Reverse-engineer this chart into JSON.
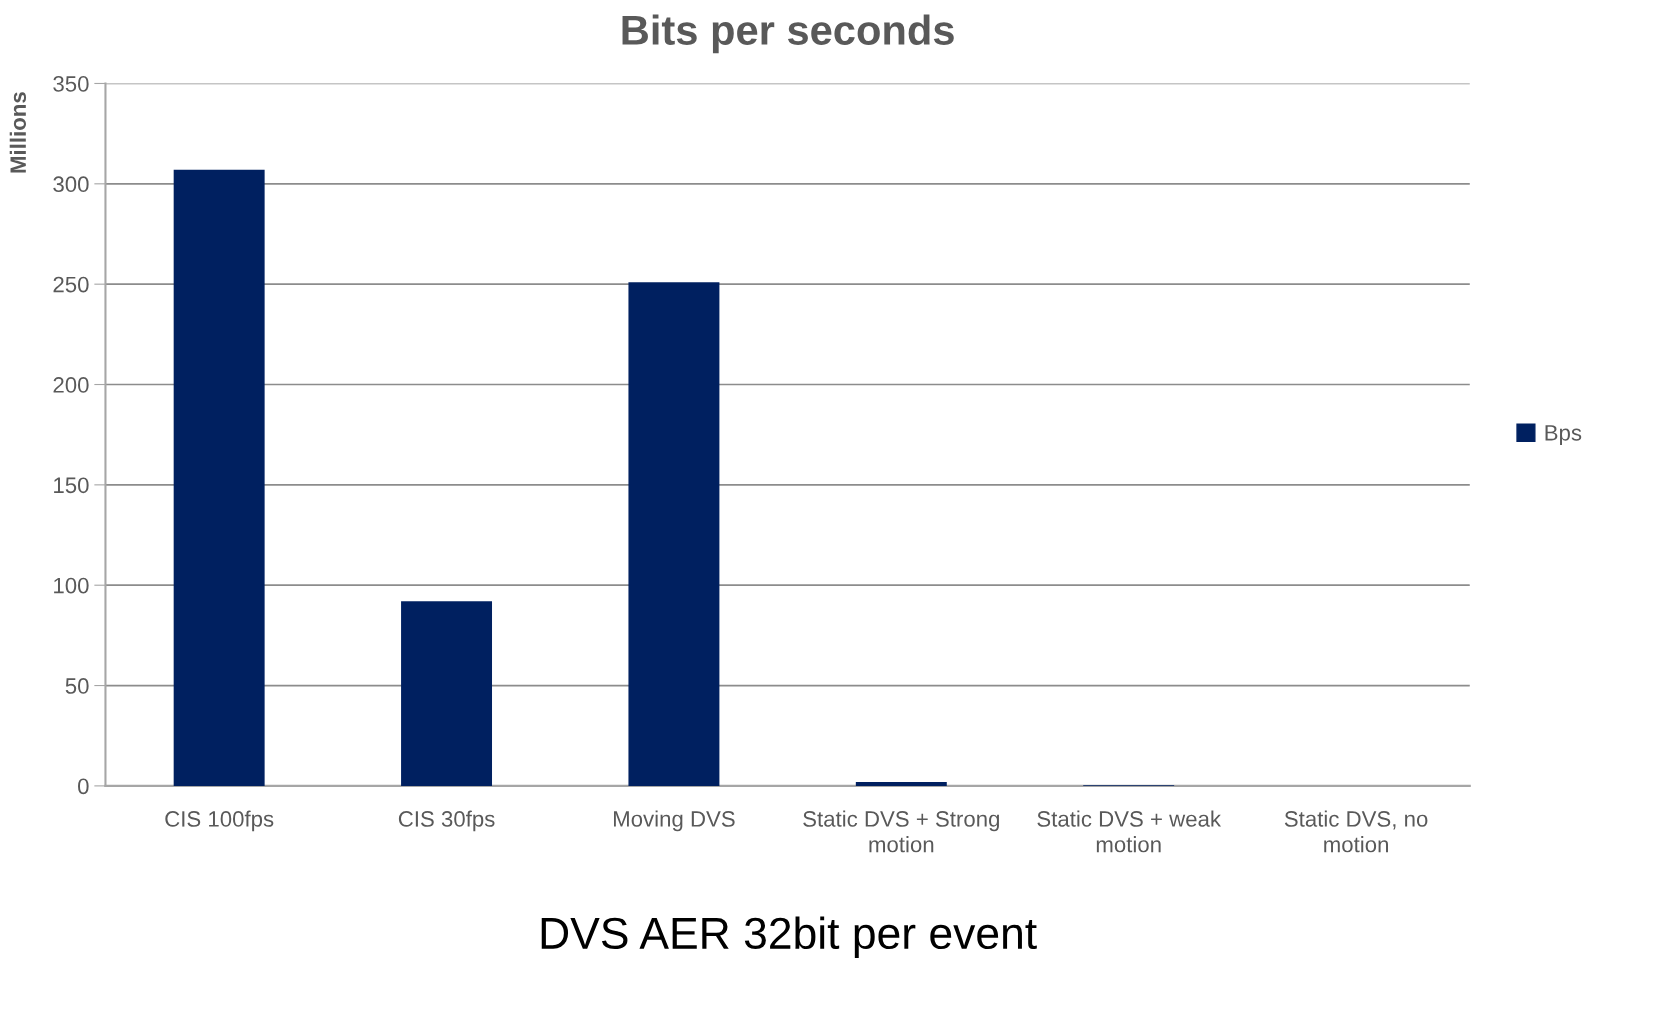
{
  "chart_data": {
    "type": "bar",
    "title": "Bits per seconds",
    "xlabel": "DVS AER 32bit per event",
    "ylabel": "Millions",
    "categories": [
      "CIS 100fps",
      "CIS 30fps",
      "Moving DVS",
      "Static DVS + Strong motion",
      "Static DVS + weak motion",
      "Static DVS, no motion"
    ],
    "series": [
      {
        "name": "Bps",
        "color": "#002060",
        "values": [
          307,
          92,
          251,
          2,
          0.3,
          0
        ]
      }
    ],
    "ylim": [
      0,
      350
    ],
    "yticks": [
      0,
      50,
      100,
      150,
      200,
      250,
      300,
      350
    ],
    "grid": "y",
    "legend": "right"
  }
}
